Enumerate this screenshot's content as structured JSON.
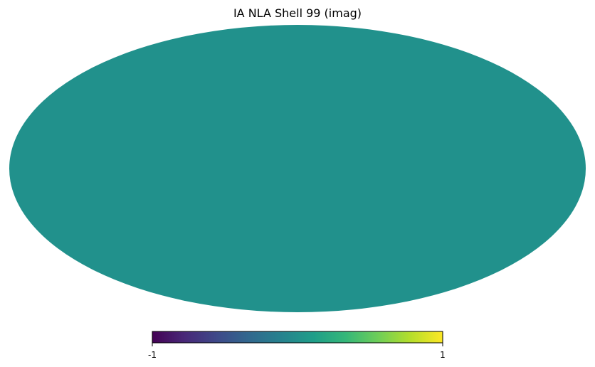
{
  "chart_data": {
    "type": "heatmap",
    "projection": "mollweide",
    "title": "IA NLA Shell 99 (imag)",
    "map_value": 0,
    "map_color": "#21918c",
    "colorbar": {
      "colormap": "viridis",
      "range": [
        -1,
        1
      ],
      "orientation": "horizontal",
      "placement": "bottom",
      "min_label": "-1",
      "max_label": "1",
      "stops": [
        "#440154",
        "#482878",
        "#3e4989",
        "#31688e",
        "#26828e",
        "#1f9e89",
        "#35b779",
        "#6ece58",
        "#b5de2b",
        "#fde725"
      ]
    },
    "grid": false
  }
}
